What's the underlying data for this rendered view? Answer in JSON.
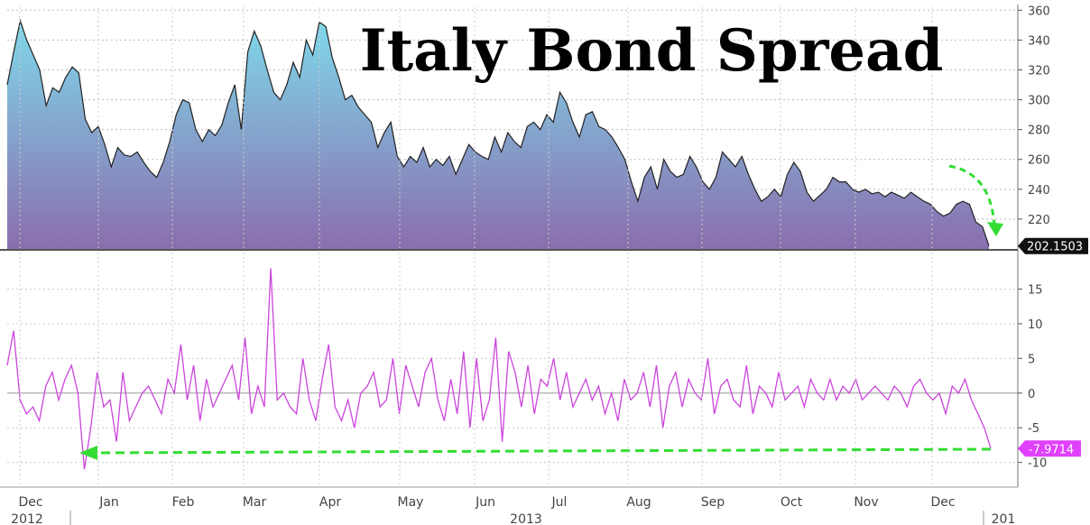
{
  "chart_data": [
    {
      "type": "area",
      "title": "Italy Bond Spread",
      "ylim": [
        200,
        362
      ],
      "y_ticks": [
        220,
        240,
        260,
        280,
        300,
        320,
        340,
        360
      ],
      "grid": true,
      "colors": {
        "fill_top": "#7fd8ea",
        "fill_bottom": "#8a6eae",
        "line": "#222222"
      },
      "last_value_label": "202.1503",
      "series": [
        {
          "values": [
            310,
            332,
            353,
            340,
            330,
            320,
            296,
            308,
            305,
            315,
            322,
            318,
            287,
            278,
            282,
            270,
            255,
            268,
            263,
            262,
            265,
            258,
            252,
            248,
            258,
            272,
            290,
            300,
            298,
            280,
            272,
            280,
            276,
            283,
            298,
            310,
            280,
            332,
            346,
            336,
            320,
            305,
            300,
            310,
            325,
            315,
            340,
            330,
            352,
            349,
            328,
            315,
            300,
            303,
            295,
            290,
            285,
            268,
            278,
            285,
            262,
            255,
            262,
            258,
            268,
            255,
            260,
            256,
            262,
            250,
            260,
            270,
            265,
            262,
            260,
            275,
            265,
            278,
            272,
            268,
            282,
            285,
            280,
            290,
            285,
            305,
            298,
            285,
            275,
            290,
            292,
            282,
            280,
            275,
            268,
            260,
            245,
            232,
            248,
            255,
            240,
            260,
            252,
            248,
            250,
            262,
            255,
            245,
            240,
            248,
            265,
            260,
            255,
            262,
            250,
            240,
            232,
            235,
            240,
            235,
            250,
            258,
            252,
            238,
            232,
            236,
            240,
            248,
            245,
            245,
            240,
            238,
            240,
            237,
            238,
            235,
            238,
            236,
            234,
            238,
            235,
            232,
            230,
            225,
            222,
            224,
            230,
            232,
            230,
            218,
            215,
            202
          ]
        }
      ],
      "arrow_color": "#33dd33"
    },
    {
      "type": "line",
      "ylim": [
        -12,
        20
      ],
      "y_ticks": [
        -10,
        -5,
        0,
        5,
        10,
        15
      ],
      "grid": true,
      "colors": {
        "line": "#cc44dd",
        "zero": "#999999"
      },
      "last_value_label": "-7.9714",
      "last_value_color": "#e040fb",
      "series": [
        {
          "values": [
            4,
            9,
            -1,
            -3,
            -2,
            -4,
            1,
            3,
            -1,
            2,
            4,
            0,
            -11,
            -5,
            3,
            -2,
            -1,
            -7,
            3,
            -4,
            -2,
            0,
            1,
            -1,
            -3,
            2,
            0,
            7,
            -1,
            4,
            -4,
            2,
            -2,
            0,
            2,
            4,
            -1,
            8,
            -3,
            1,
            -2,
            18,
            -1,
            0,
            -2,
            -3,
            5,
            -1,
            -4,
            2,
            7,
            -2,
            -4,
            -1,
            -5,
            0,
            1,
            3,
            -2,
            -1,
            5,
            -3,
            4,
            1,
            -2,
            3,
            5,
            -1,
            -4,
            2,
            -3,
            6,
            -5,
            5,
            -4,
            -1,
            8,
            -7,
            6,
            3,
            -2,
            4,
            -3,
            2,
            1,
            5,
            -1,
            3,
            -2,
            0,
            2,
            -1,
            1,
            -3,
            0,
            -4,
            2,
            -1,
            0,
            3,
            -2,
            4,
            -5,
            1,
            3,
            -2,
            2,
            0,
            -1,
            5,
            -3,
            1,
            2,
            -1,
            -2,
            4,
            -3,
            1,
            0,
            -2,
            3,
            -1,
            0,
            1,
            -2,
            2,
            0,
            -1,
            2,
            -1,
            1,
            0,
            2,
            -1,
            0,
            1,
            0,
            -1,
            1,
            0,
            -2,
            1,
            2,
            0,
            -1,
            0,
            -3,
            1,
            0,
            2,
            -1,
            -3,
            -5,
            -8
          ]
        }
      ],
      "arrow_color": "#33dd33"
    }
  ],
  "x_axis": {
    "months": [
      "Dec",
      "Jan",
      "Feb",
      "Mar",
      "Apr",
      "May",
      "Jun",
      "Jul",
      "Aug",
      "Sep",
      "Oct",
      "Nov",
      "Dec"
    ],
    "years": [
      "2012",
      "2013",
      "201"
    ]
  }
}
